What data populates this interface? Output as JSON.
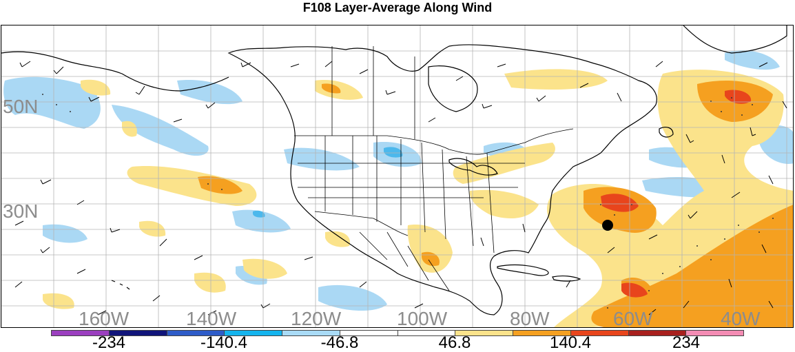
{
  "title": "F108 Layer-Average Along Wind",
  "map": {
    "latitude_labels": [
      "50N",
      "30N"
    ],
    "longitude_labels": [
      "160W",
      "140W",
      "120W",
      "100W",
      "80W",
      "60W",
      "40W"
    ]
  },
  "colorbar": {
    "colors": [
      "#9b3fbf",
      "#10147a",
      "#2e5cc8",
      "#14b4ee",
      "#a9dbf6",
      "#ffffff",
      "#ffffff",
      "#fbe38b",
      "#f5a020",
      "#e8451c",
      "#a8201e",
      "#f48cb4"
    ],
    "tick_labels": [
      "-234",
      "-140.4",
      "-46.8",
      "46.8",
      "140.4",
      "234"
    ]
  },
  "colors": {
    "light_blue": "#aad8f4",
    "medium_blue": "#4cb8ec",
    "light_yellow": "#fbe38b",
    "orange": "#f5a020",
    "red_orange": "#e8451c",
    "grid": "#b4b4b4",
    "label_gray": "#8c8c8c"
  },
  "marker": "storm-center-dot"
}
